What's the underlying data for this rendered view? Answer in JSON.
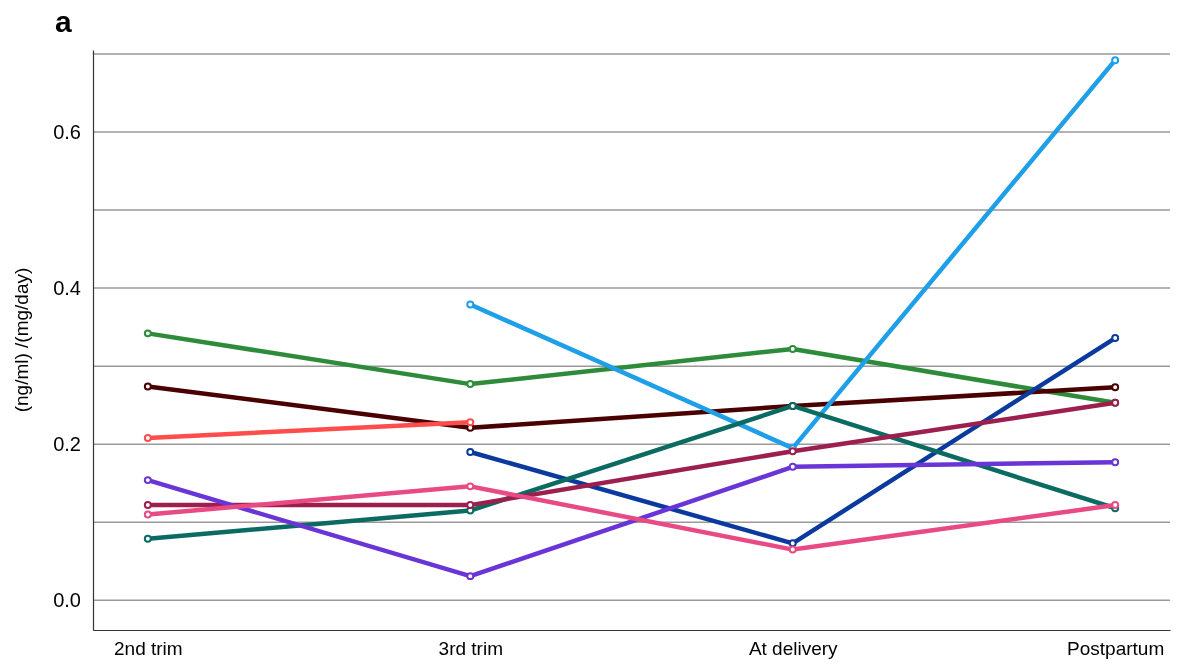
{
  "chart_data": {
    "type": "line",
    "title": "a",
    "ylabel": "(ng/ml) /(mg/day)",
    "categories": [
      "2nd trim",
      "3rd trim",
      "At delivery",
      "Postpartum"
    ],
    "series": [
      {
        "color": "#2e8b3a",
        "values": [
          0.342,
          0.277,
          0.322,
          0.253
        ]
      },
      {
        "color": "#4a0000",
        "values": [
          0.274,
          0.221,
          0.249,
          0.273
        ]
      },
      {
        "color": "#ff4d4d",
        "values": [
          0.208,
          0.228,
          null,
          null
        ]
      },
      {
        "color": "#1e9fe8",
        "values": [
          null,
          0.379,
          0.195,
          0.692
        ]
      },
      {
        "color": "#0a3a9e",
        "values": [
          null,
          0.19,
          0.073,
          0.336
        ]
      },
      {
        "color": "#0b6b62",
        "values": [
          0.079,
          0.115,
          0.249,
          0.118
        ]
      },
      {
        "color": "#9c1f4e",
        "values": [
          0.122,
          0.122,
          0.191,
          0.253
        ]
      },
      {
        "color": "#6a35d6",
        "values": [
          0.154,
          0.031,
          0.171,
          0.177
        ]
      },
      {
        "color": "#e84a84",
        "values": [
          0.11,
          0.146,
          0.065,
          0.122
        ]
      }
    ],
    "ylim": [
      -0.038,
      0.705
    ],
    "yticks": [
      {
        "value": 0.0,
        "label": "0.0"
      },
      {
        "value": 0.1,
        "label": null
      },
      {
        "value": 0.2,
        "label": "0.2"
      },
      {
        "value": 0.3,
        "label": null
      },
      {
        "value": 0.4,
        "label": "0.4"
      },
      {
        "value": 0.5,
        "label": null
      },
      {
        "value": 0.6,
        "label": "0.6"
      },
      {
        "value": 0.7,
        "label": null
      }
    ],
    "grid": "y",
    "marker": "circle",
    "line_style": "solid"
  }
}
